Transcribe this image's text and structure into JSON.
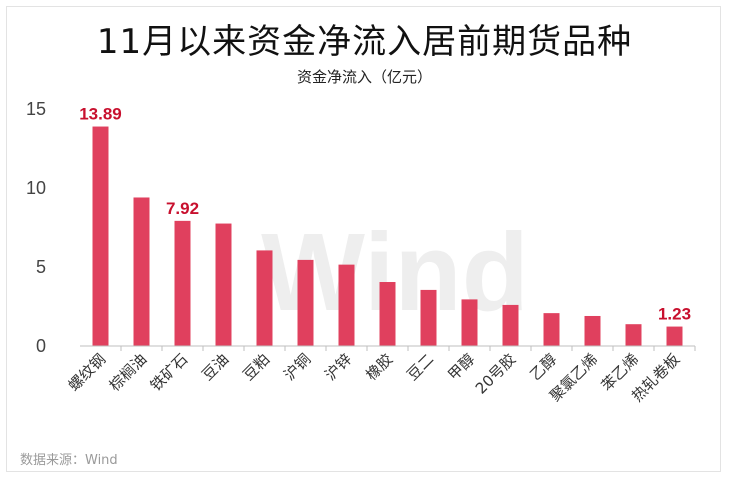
{
  "chart_data": {
    "type": "bar",
    "title": "11月以来资金净流入居前期货品种",
    "subtitle": "资金净流入（亿元）",
    "categories": [
      "螺纹钢",
      "棕榈油",
      "铁矿石",
      "豆油",
      "豆粕",
      "沪铜",
      "沪锌",
      "橡胶",
      "豆二",
      "甲醇",
      "20号胶",
      "乙醇",
      "聚氯乙烯",
      "苯乙烯",
      "热轧卷板"
    ],
    "values": [
      13.89,
      9.4,
      7.92,
      7.75,
      6.05,
      5.45,
      5.15,
      4.05,
      3.55,
      2.95,
      2.6,
      2.08,
      1.9,
      1.38,
      1.23
    ],
    "data_labels": [
      {
        "index": 0,
        "text": "13.89"
      },
      {
        "index": 2,
        "text": "7.92"
      },
      {
        "index": 14,
        "text": "1.23"
      }
    ],
    "ylim": [
      0,
      15
    ],
    "yticks": [
      0,
      5,
      10,
      15
    ],
    "bar_color": "#e0405e",
    "label_color": "#c8102e",
    "grid": false,
    "legend": "none",
    "watermark": "Wind"
  },
  "source_note": "数据来源：Wind"
}
